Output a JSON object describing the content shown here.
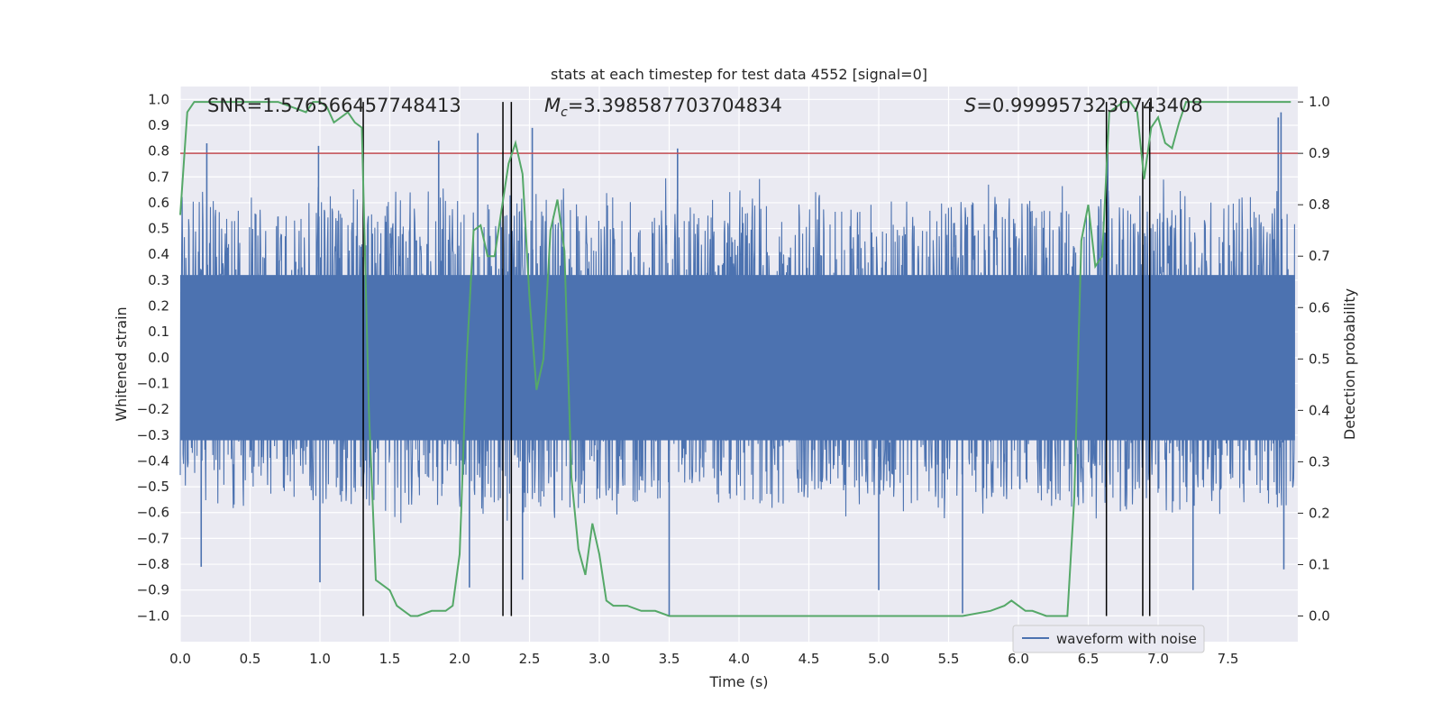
{
  "chart_data": {
    "type": "line",
    "title": "stats at each timestep for test data 4552 [signal=0]",
    "xlabel": "Time (s)",
    "ylabel": "Whitened strain",
    "y2label": "Detection probability",
    "xlim": [
      0.0,
      8.0
    ],
    "ylim": [
      -1.1,
      1.05
    ],
    "y2lim": [
      -0.05,
      1.03
    ],
    "xticks": [
      "0.0",
      "0.5",
      "1.0",
      "1.5",
      "2.0",
      "2.5",
      "3.0",
      "3.5",
      "4.0",
      "4.5",
      "5.0",
      "5.5",
      "6.0",
      "6.5",
      "7.0",
      "7.5"
    ],
    "xtick_values": [
      0.0,
      0.5,
      1.0,
      1.5,
      2.0,
      2.5,
      3.0,
      3.5,
      4.0,
      4.5,
      5.0,
      5.5,
      6.0,
      6.5,
      7.0,
      7.5
    ],
    "yticks": [
      "1.0",
      "0.9",
      "0.8",
      "0.7",
      "0.6",
      "0.5",
      "0.4",
      "0.3",
      "0.2",
      "0.1",
      "0.0",
      "-0.1",
      "-0.2",
      "-0.3",
      "-0.4",
      "-0.5",
      "-0.6",
      "-0.7",
      "-0.8",
      "-0.9",
      "-1.0"
    ],
    "ytick_values": [
      1.0,
      0.9,
      0.8,
      0.7,
      0.6,
      0.5,
      0.4,
      0.3,
      0.2,
      0.1,
      0.0,
      -0.1,
      -0.2,
      -0.3,
      -0.4,
      -0.5,
      -0.6,
      -0.7,
      -0.8,
      -0.9,
      -1.0
    ],
    "y2ticks": [
      "1.0",
      "0.9",
      "0.8",
      "0.7",
      "0.6",
      "0.5",
      "0.4",
      "0.3",
      "0.2",
      "0.1",
      "0.0"
    ],
    "y2tick_values": [
      1.0,
      0.9,
      0.8,
      0.7,
      0.6,
      0.5,
      0.4,
      0.3,
      0.2,
      0.1,
      0.0
    ],
    "annotations": {
      "snr": "SNR=1.576566457748413",
      "mc_symbol": "M",
      "mc_sub": "c",
      "mc_value": "=3.398587703704834",
      "s_symbol": "S",
      "s_value": "=0.9999573230743408"
    },
    "threshold": 0.9,
    "vlines": [
      1.31,
      2.31,
      2.37,
      6.63,
      6.89,
      6.94
    ],
    "waveform": {
      "name": "waveform with noise",
      "color": "#4c72b0",
      "seed": 4552,
      "envelope_upper": 0.55,
      "envelope_lower": -0.5,
      "spikes": [
        {
          "t": 0.19,
          "v": 0.83
        },
        {
          "t": 0.99,
          "v": 0.82
        },
        {
          "t": 1.85,
          "v": 0.84
        },
        {
          "t": 2.13,
          "v": 0.87
        },
        {
          "t": 2.52,
          "v": 0.89
        },
        {
          "t": 3.56,
          "v": 0.81
        },
        {
          "t": 6.64,
          "v": 0.85
        },
        {
          "t": 7.88,
          "v": 0.95
        },
        {
          "t": 7.86,
          "v": 0.93
        },
        {
          "t": 0.15,
          "v": -0.81
        },
        {
          "t": 1.0,
          "v": -0.87
        },
        {
          "t": 2.07,
          "v": -0.89
        },
        {
          "t": 2.45,
          "v": -0.86
        },
        {
          "t": 3.5,
          "v": -1.0
        },
        {
          "t": 5.0,
          "v": -0.9
        },
        {
          "t": 5.6,
          "v": -0.99
        },
        {
          "t": 7.25,
          "v": -0.9
        },
        {
          "t": 7.9,
          "v": -0.82
        }
      ]
    },
    "probability": {
      "color": "#55a868",
      "x": [
        0.0,
        0.05,
        0.1,
        0.2,
        0.3,
        0.4,
        0.5,
        0.6,
        0.7,
        0.8,
        0.9,
        0.95,
        1.0,
        1.05,
        1.1,
        1.15,
        1.2,
        1.25,
        1.3,
        1.35,
        1.4,
        1.45,
        1.5,
        1.55,
        1.6,
        1.65,
        1.7,
        1.8,
        1.9,
        1.95,
        2.0,
        2.05,
        2.1,
        2.15,
        2.2,
        2.25,
        2.3,
        2.35,
        2.4,
        2.45,
        2.5,
        2.55,
        2.6,
        2.65,
        2.7,
        2.75,
        2.8,
        2.85,
        2.9,
        2.95,
        3.0,
        3.05,
        3.1,
        3.15,
        3.2,
        3.3,
        3.4,
        3.5,
        3.7,
        4.0,
        4.3,
        4.5,
        4.8,
        5.0,
        5.3,
        5.6,
        5.8,
        5.9,
        5.95,
        6.0,
        6.05,
        6.1,
        6.2,
        6.3,
        6.35,
        6.4,
        6.45,
        6.5,
        6.55,
        6.6,
        6.65,
        6.7,
        6.75,
        6.8,
        6.85,
        6.9,
        6.95,
        7.0,
        7.05,
        7.1,
        7.15,
        7.2,
        7.25,
        7.3,
        7.5,
        7.7,
        7.95
      ],
      "y": [
        0.78,
        0.98,
        1.0,
        1.0,
        1.0,
        1.0,
        1.0,
        1.0,
        1.0,
        0.99,
        0.98,
        1.0,
        1.0,
        0.99,
        0.96,
        0.97,
        0.98,
        0.96,
        0.95,
        0.4,
        0.07,
        0.06,
        0.05,
        0.02,
        0.01,
        0.0,
        0.0,
        0.01,
        0.01,
        0.02,
        0.12,
        0.5,
        0.75,
        0.76,
        0.7,
        0.7,
        0.79,
        0.88,
        0.92,
        0.86,
        0.62,
        0.44,
        0.5,
        0.75,
        0.81,
        0.71,
        0.27,
        0.13,
        0.08,
        0.18,
        0.12,
        0.03,
        0.02,
        0.02,
        0.02,
        0.01,
        0.01,
        0.0,
        0.0,
        0.0,
        0.0,
        0.0,
        0.0,
        0.0,
        0.0,
        0.0,
        0.01,
        0.02,
        0.03,
        0.02,
        0.01,
        0.01,
        0.0,
        0.0,
        0.0,
        0.23,
        0.73,
        0.8,
        0.68,
        0.7,
        0.98,
        0.99,
        1.0,
        1.0,
        0.98,
        0.85,
        0.95,
        0.97,
        0.92,
        0.91,
        0.96,
        1.0,
        1.0,
        1.0,
        1.0,
        1.0,
        1.0
      ]
    }
  }
}
